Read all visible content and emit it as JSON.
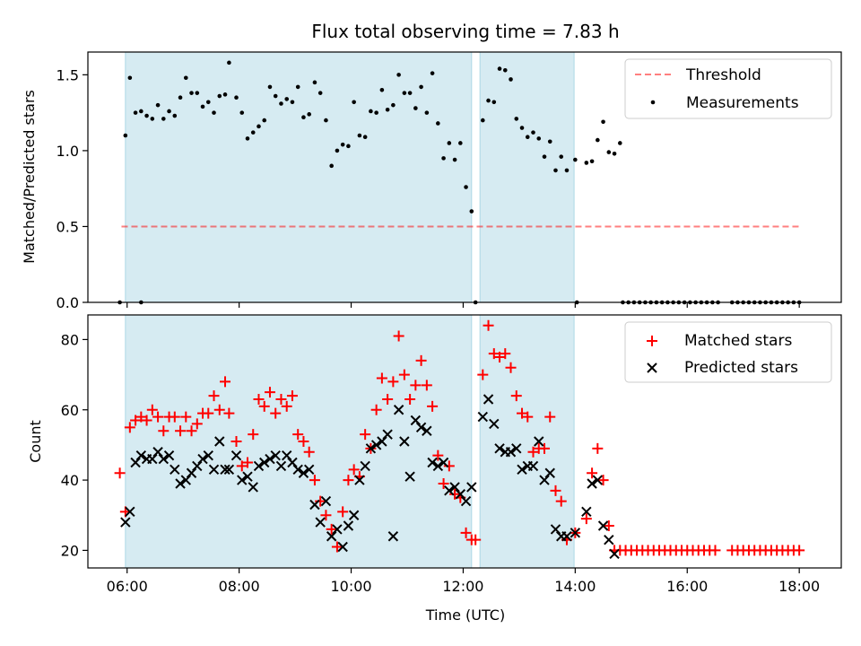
{
  "title": "Flux total observing time = 7.83 h",
  "colors": {
    "shade": "#add8e6",
    "threshold": "#ff0000",
    "measurement": "#000000",
    "matched": "#ff0000",
    "predicted": "#000000"
  },
  "chart_data": [
    {
      "type": "scatter",
      "panel": "top",
      "ylabel": "Matched/Predicted stars",
      "xlim": [
        5.3,
        18.75
      ],
      "ylim": [
        0,
        1.65
      ],
      "yticks": [
        "0.0",
        "0.5",
        "1.0",
        "1.5"
      ],
      "legend_position": "top-right",
      "legend": [
        "Threshold",
        "Measurements"
      ],
      "shaded_intervals": [
        [
          5.97,
          12.15
        ],
        [
          12.3,
          13.98
        ]
      ],
      "threshold": {
        "name": "Threshold",
        "x": [
          5.9,
          18.0
        ],
        "y": 0.5
      },
      "series": [
        {
          "name": "Measurements",
          "x": [
            5.87,
            5.97,
            6.05,
            6.15,
            6.25,
            6.35,
            6.45,
            6.55,
            6.65,
            6.75,
            6.85,
            6.95,
            7.05,
            7.15,
            7.25,
            7.35,
            7.45,
            7.55,
            7.65,
            7.75,
            7.82,
            7.95,
            8.05,
            8.15,
            8.25,
            8.35,
            8.45,
            8.55,
            8.65,
            8.75,
            8.85,
            8.95,
            9.05,
            9.15,
            9.25,
            9.35,
            9.45,
            9.55,
            9.65,
            9.75,
            9.85,
            9.95,
            10.05,
            10.15,
            10.25,
            10.35,
            10.45,
            10.55,
            10.65,
            10.75,
            10.85,
            10.95,
            11.05,
            11.15,
            11.25,
            11.35,
            11.45,
            11.55,
            11.65,
            11.75,
            11.85,
            11.95,
            12.05,
            12.15,
            12.22,
            12.35,
            12.45,
            12.55,
            12.65,
            12.75,
            12.85,
            12.95,
            13.05,
            13.15,
            13.25,
            13.35,
            13.45,
            13.55,
            13.65,
            13.75,
            13.85,
            14.0,
            14.2,
            14.3,
            14.4,
            14.5,
            14.6,
            14.7,
            14.8
          ],
          "y": [
            0.0,
            1.1,
            1.48,
            1.25,
            1.26,
            1.23,
            1.21,
            1.3,
            1.21,
            1.26,
            1.23,
            1.35,
            1.48,
            1.38,
            1.38,
            1.29,
            1.32,
            1.25,
            1.36,
            1.37,
            1.58,
            1.35,
            1.25,
            1.08,
            1.12,
            1.16,
            1.2,
            1.42,
            1.36,
            1.31,
            1.34,
            1.32,
            1.42,
            1.22,
            1.24,
            1.45,
            1.38,
            1.2,
            0.9,
            1.0,
            1.04,
            1.03,
            1.32,
            1.1,
            1.09,
            1.26,
            1.25,
            1.4,
            1.27,
            1.3,
            1.5,
            1.38,
            1.38,
            1.28,
            1.42,
            1.25,
            1.51,
            1.18,
            0.95,
            1.05,
            0.94,
            1.05,
            0.76,
            0.6,
            0.0,
            1.2,
            1.33,
            1.32,
            1.54,
            1.53,
            1.47,
            1.21,
            1.15,
            1.09,
            1.12,
            1.08,
            0.96,
            1.06,
            0.87,
            0.96,
            0.87,
            0.94,
            0.92,
            0.93,
            1.07,
            1.19,
            0.99,
            0.98,
            1.05
          ]
        },
        {
          "name": "Measurements",
          "x": [
            6.25,
            14.03,
            14.85,
            14.95,
            15.05,
            15.15,
            15.25,
            15.35,
            15.45,
            15.55,
            15.65,
            15.75,
            15.85,
            15.95,
            16.05,
            16.15,
            16.25,
            16.35,
            16.45,
            16.55,
            16.8,
            16.9,
            17.0,
            17.1,
            17.2,
            17.3,
            17.4,
            17.5,
            17.6,
            17.7,
            17.8,
            17.9,
            18.0
          ],
          "y": [
            0,
            0,
            0,
            0,
            0,
            0,
            0,
            0,
            0,
            0,
            0,
            0,
            0,
            0,
            0,
            0,
            0,
            0,
            0,
            0,
            0,
            0,
            0,
            0,
            0,
            0,
            0,
            0,
            0,
            0,
            0,
            0,
            0
          ]
        }
      ]
    },
    {
      "type": "scatter",
      "panel": "bottom",
      "xlabel": "Time (UTC)",
      "ylabel": "Count",
      "xlim": [
        5.3,
        18.75
      ],
      "ylim": [
        15,
        87
      ],
      "xticks": [
        "06:00",
        "08:00",
        "10:00",
        "12:00",
        "14:00",
        "16:00",
        "18:00"
      ],
      "yticks": [
        "20",
        "40",
        "60",
        "80"
      ],
      "legend_position": "top-right",
      "legend": [
        "Matched stars",
        "Predicted stars"
      ],
      "shaded_intervals": [
        [
          5.97,
          12.15
        ],
        [
          12.3,
          13.98
        ]
      ],
      "series": [
        {
          "name": "Matched stars",
          "marker": "+",
          "x": [
            5.87,
            5.97,
            6.05,
            6.15,
            6.25,
            6.35,
            6.45,
            6.55,
            6.65,
            6.75,
            6.85,
            6.95,
            7.05,
            7.15,
            7.25,
            7.35,
            7.45,
            7.55,
            7.65,
            7.75,
            7.82,
            7.95,
            8.05,
            8.15,
            8.25,
            8.35,
            8.45,
            8.55,
            8.65,
            8.75,
            8.85,
            8.95,
            9.05,
            9.15,
            9.25,
            9.35,
            9.45,
            9.55,
            9.65,
            9.75,
            9.85,
            9.95,
            10.05,
            10.15,
            10.25,
            10.35,
            10.45,
            10.55,
            10.65,
            10.75,
            10.85,
            10.95,
            11.05,
            11.15,
            11.25,
            11.35,
            11.45,
            11.55,
            11.65,
            11.75,
            11.85,
            11.95,
            12.05,
            12.15,
            12.22,
            12.35,
            12.45,
            12.55,
            12.65,
            12.75,
            12.85,
            12.95,
            13.05,
            13.15,
            13.25,
            13.35,
            13.45,
            13.55,
            13.65,
            13.75,
            13.85,
            14.0,
            14.2,
            14.3,
            14.4,
            14.5,
            14.6,
            14.7,
            14.8,
            14.9,
            15.0,
            15.1,
            15.2,
            15.3,
            15.4,
            15.5,
            15.6,
            15.7,
            15.8,
            15.9,
            16.0,
            16.1,
            16.2,
            16.3,
            16.4,
            16.5,
            16.8,
            16.9,
            17.0,
            17.1,
            17.2,
            17.3,
            17.4,
            17.5,
            17.6,
            17.7,
            17.8,
            17.9,
            18.0
          ],
          "y": [
            42,
            31,
            55,
            57,
            58,
            57,
            60,
            58,
            54,
            58,
            58,
            54,
            58,
            54,
            56,
            59,
            59,
            64,
            60,
            68,
            59,
            51,
            44,
            45,
            53,
            63,
            61,
            65,
            59,
            63,
            61,
            64,
            53,
            51,
            48,
            40,
            34,
            30,
            26,
            21,
            31,
            40,
            43,
            41,
            53,
            49,
            60,
            69,
            63,
            68,
            81,
            70,
            63,
            67,
            74,
            67,
            61,
            47,
            39,
            44,
            36,
            35,
            25,
            23,
            23,
            70,
            84,
            76,
            75,
            76,
            72,
            64,
            59,
            58,
            48,
            49,
            49,
            58,
            37,
            34,
            23,
            25,
            29,
            42,
            49,
            40,
            27,
            20,
            20,
            20,
            20,
            20,
            20,
            20,
            20,
            20,
            20,
            20,
            20,
            20,
            20,
            20,
            20,
            20,
            20,
            20,
            20,
            20,
            20,
            20,
            20,
            20,
            20,
            20,
            20,
            20,
            20,
            20,
            20
          ]
        },
        {
          "name": "Predicted stars",
          "marker": "x",
          "x": [
            5.97,
            6.05,
            6.15,
            6.25,
            6.35,
            6.45,
            6.55,
            6.65,
            6.75,
            6.85,
            6.95,
            7.05,
            7.15,
            7.25,
            7.35,
            7.45,
            7.55,
            7.65,
            7.75,
            7.82,
            7.95,
            8.05,
            8.15,
            8.25,
            8.35,
            8.45,
            8.55,
            8.65,
            8.75,
            8.85,
            8.95,
            9.05,
            9.15,
            9.25,
            9.35,
            9.45,
            9.55,
            9.65,
            9.75,
            9.85,
            9.95,
            10.05,
            10.15,
            10.25,
            10.35,
            10.45,
            10.55,
            10.65,
            10.75,
            10.85,
            10.95,
            11.05,
            11.15,
            11.25,
            11.35,
            11.45,
            11.55,
            11.65,
            11.75,
            11.85,
            11.95,
            12.05,
            12.15,
            12.35,
            12.45,
            12.55,
            12.65,
            12.75,
            12.85,
            12.95,
            13.05,
            13.15,
            13.25,
            13.35,
            13.45,
            13.55,
            13.65,
            13.75,
            13.85,
            14.0,
            14.2,
            14.3,
            14.4,
            14.5,
            14.6,
            14.7
          ],
          "y": [
            28,
            31,
            45,
            47,
            46,
            46,
            48,
            46,
            47,
            43,
            39,
            40,
            42,
            44,
            46,
            47,
            43,
            51,
            43,
            43,
            47,
            40,
            41,
            38,
            44,
            45,
            46,
            47,
            44,
            47,
            45,
            43,
            42,
            43,
            33,
            28,
            34,
            24,
            26,
            21,
            27,
            30,
            40,
            44,
            49,
            50,
            51,
            53,
            24,
            60,
            51,
            41,
            57,
            55,
            54,
            45,
            44,
            45,
            37,
            38,
            36,
            34,
            38,
            58,
            63,
            56,
            49,
            48,
            48,
            49,
            43,
            44,
            44,
            51,
            40,
            42,
            26,
            24,
            24,
            25,
            31,
            39,
            40,
            27,
            23,
            19
          ]
        }
      ]
    }
  ]
}
